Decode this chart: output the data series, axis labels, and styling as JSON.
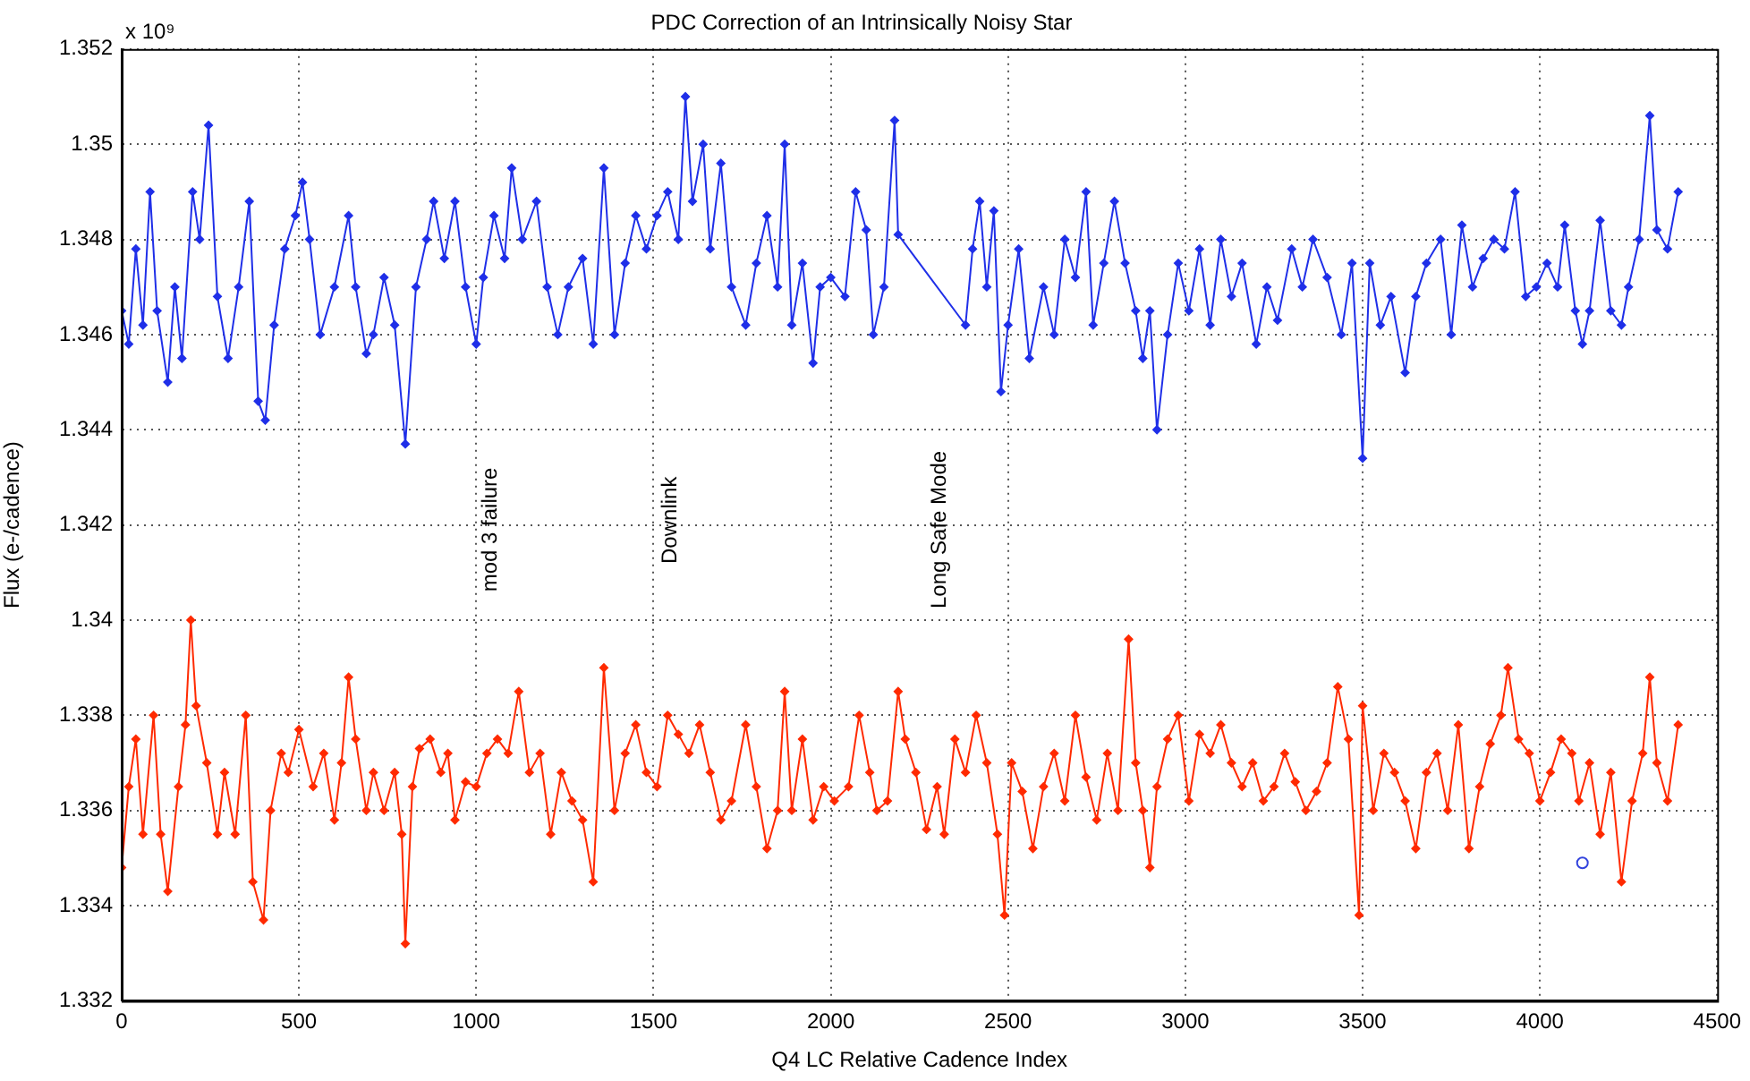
{
  "chart_data": {
    "type": "line",
    "title": "PDC Correction of an Intrinsically Noisy Star",
    "xlabel": "Q4 LC Relative Cadence Index",
    "ylabel": "Flux (e-/cadence)",
    "xlim": [
      0,
      4500
    ],
    "xticks": [
      0,
      500,
      1000,
      1500,
      2000,
      2500,
      3000,
      3500,
      4000,
      4500
    ],
    "ylim": [
      1.332,
      1.352
    ],
    "yticks": [
      1.332,
      1.334,
      1.336,
      1.338,
      1.34,
      1.342,
      1.344,
      1.346,
      1.348,
      1.35,
      1.352
    ],
    "grid": true,
    "legend": false,
    "marker": "diamond",
    "line_style": "solid",
    "annotations": [
      "x 10⁹",
      "mod 3 failure",
      "Downlink",
      "Long Safe Mode"
    ],
    "series": [
      {
        "color": "#1f2fe8",
        "x": [
          0,
          20,
          40,
          60,
          80,
          100,
          130,
          150,
          170,
          200,
          220,
          245,
          270,
          300,
          330,
          360,
          385,
          405,
          430,
          460,
          490,
          510,
          530,
          560,
          600,
          640,
          660,
          690,
          710,
          740,
          770,
          800,
          830,
          860,
          880,
          910,
          940,
          970,
          1000,
          1020,
          1050,
          1080,
          1100,
          1130,
          1170,
          1200,
          1230,
          1260,
          1300,
          1330,
          1360,
          1390,
          1420,
          1450,
          1480,
          1510,
          1540,
          1570,
          1590,
          1610,
          1640,
          1660,
          1690,
          1720,
          1760,
          1790,
          1820,
          1850,
          1870,
          1890,
          1920,
          1950,
          1970,
          2000,
          2040,
          2070,
          2100,
          2120,
          2150,
          2180,
          2190,
          2380,
          2400,
          2420,
          2440,
          2460,
          2480,
          2500,
          2530,
          2560,
          2600,
          2630,
          2660,
          2690,
          2720,
          2740,
          2770,
          2800,
          2830,
          2860,
          2880,
          2900,
          2920,
          2950,
          2980,
          3010,
          3040,
          3070,
          3100,
          3130,
          3160,
          3200,
          3230,
          3260,
          3300,
          3330,
          3360,
          3400,
          3440,
          3470,
          3500,
          3520,
          3550,
          3580,
          3620,
          3650,
          3680,
          3720,
          3750,
          3780,
          3810,
          3840,
          3870,
          3900,
          3930,
          3960,
          3990,
          4020,
          4050,
          4070,
          4100,
          4120,
          4140,
          4170,
          4200,
          4230,
          4250,
          4280,
          4310,
          4330,
          4360,
          4390
        ],
        "values": [
          1.3465,
          1.3458,
          1.3478,
          1.3462,
          1.349,
          1.3465,
          1.345,
          1.347,
          1.3455,
          1.349,
          1.348,
          1.3504,
          1.3468,
          1.3455,
          1.347,
          1.3488,
          1.3446,
          1.3442,
          1.3462,
          1.3478,
          1.3485,
          1.3492,
          1.348,
          1.346,
          1.347,
          1.3485,
          1.347,
          1.3456,
          1.346,
          1.3472,
          1.3462,
          1.3437,
          1.347,
          1.348,
          1.3488,
          1.3476,
          1.3488,
          1.347,
          1.3458,
          1.3472,
          1.3485,
          1.3476,
          1.3495,
          1.348,
          1.3488,
          1.347,
          1.346,
          1.347,
          1.3476,
          1.3458,
          1.3495,
          1.346,
          1.3475,
          1.3485,
          1.3478,
          1.3485,
          1.349,
          1.348,
          1.351,
          1.3488,
          1.35,
          1.3478,
          1.3496,
          1.347,
          1.3462,
          1.3475,
          1.3485,
          1.347,
          1.35,
          1.3462,
          1.3475,
          1.3454,
          1.347,
          1.3472,
          1.3468,
          1.349,
          1.3482,
          1.346,
          1.347,
          1.3505,
          1.3481,
          1.3462,
          1.3478,
          1.3488,
          1.347,
          1.3486,
          1.3448,
          1.3462,
          1.3478,
          1.3455,
          1.347,
          1.346,
          1.348,
          1.3472,
          1.349,
          1.3462,
          1.3475,
          1.3488,
          1.3475,
          1.3465,
          1.3455,
          1.3465,
          1.344,
          1.346,
          1.3475,
          1.3465,
          1.3478,
          1.3462,
          1.348,
          1.3468,
          1.3475,
          1.3458,
          1.347,
          1.3463,
          1.3478,
          1.347,
          1.348,
          1.3472,
          1.346,
          1.3475,
          1.3434,
          1.3475,
          1.3462,
          1.3468,
          1.3452,
          1.3468,
          1.3475,
          1.348,
          1.346,
          1.3483,
          1.347,
          1.3476,
          1.348,
          1.3478,
          1.349,
          1.3468,
          1.347,
          1.3475,
          1.347,
          1.3483,
          1.3465,
          1.3458,
          1.3465,
          1.3484,
          1.3465,
          1.3462,
          1.347,
          1.348,
          1.3506,
          1.3482,
          1.3478,
          1.349
        ]
      },
      {
        "color": "#ff2a00",
        "x": [
          0,
          20,
          40,
          60,
          90,
          110,
          130,
          160,
          180,
          195,
          210,
          240,
          270,
          290,
          320,
          350,
          370,
          400,
          420,
          450,
          470,
          500,
          540,
          570,
          600,
          620,
          640,
          660,
          690,
          710,
          740,
          770,
          790,
          800,
          820,
          840,
          870,
          900,
          920,
          940,
          970,
          1000,
          1030,
          1060,
          1090,
          1120,
          1150,
          1180,
          1210,
          1240,
          1270,
          1300,
          1330,
          1360,
          1390,
          1420,
          1450,
          1480,
          1510,
          1540,
          1570,
          1600,
          1630,
          1660,
          1690,
          1720,
          1760,
          1790,
          1820,
          1850,
          1870,
          1890,
          1920,
          1950,
          1980,
          2010,
          2050,
          2080,
          2110,
          2130,
          2160,
          2190,
          2210,
          2240,
          2270,
          2300,
          2320,
          2350,
          2380,
          2410,
          2440,
          2470,
          2490,
          2510,
          2540,
          2570,
          2600,
          2630,
          2660,
          2690,
          2720,
          2750,
          2780,
          2810,
          2840,
          2860,
          2880,
          2900,
          2920,
          2950,
          2980,
          3010,
          3040,
          3070,
          3100,
          3130,
          3160,
          3190,
          3220,
          3250,
          3280,
          3310,
          3340,
          3370,
          3400,
          3430,
          3460,
          3490,
          3500,
          3530,
          3560,
          3590,
          3620,
          3650,
          3680,
          3710,
          3740,
          3770,
          3800,
          3830,
          3860,
          3890,
          3910,
          3940,
          3970,
          4000,
          4030,
          4060,
          4090,
          4110,
          4140,
          4170,
          4200,
          4230,
          4260,
          4290,
          4310,
          4330,
          4360,
          4390
        ],
        "values": [
          1.3348,
          1.3365,
          1.3375,
          1.3355,
          1.338,
          1.3355,
          1.3343,
          1.3365,
          1.3378,
          1.34,
          1.3382,
          1.337,
          1.3355,
          1.3368,
          1.3355,
          1.338,
          1.3345,
          1.3337,
          1.336,
          1.3372,
          1.3368,
          1.3377,
          1.3365,
          1.3372,
          1.3358,
          1.337,
          1.3388,
          1.3375,
          1.336,
          1.3368,
          1.336,
          1.3368,
          1.3355,
          1.3332,
          1.3365,
          1.3373,
          1.3375,
          1.3368,
          1.3372,
          1.3358,
          1.3366,
          1.3365,
          1.3372,
          1.3375,
          1.3372,
          1.3385,
          1.3368,
          1.3372,
          1.3355,
          1.3368,
          1.3362,
          1.3358,
          1.3345,
          1.339,
          1.336,
          1.3372,
          1.3378,
          1.3368,
          1.3365,
          1.338,
          1.3376,
          1.3372,
          1.3378,
          1.3368,
          1.3358,
          1.3362,
          1.3378,
          1.3365,
          1.3352,
          1.336,
          1.3385,
          1.336,
          1.3375,
          1.3358,
          1.3365,
          1.3362,
          1.3365,
          1.338,
          1.3368,
          1.336,
          1.3362,
          1.3385,
          1.3375,
          1.3368,
          1.3356,
          1.3365,
          1.3355,
          1.3375,
          1.3368,
          1.338,
          1.337,
          1.3355,
          1.3338,
          1.337,
          1.3364,
          1.3352,
          1.3365,
          1.3372,
          1.3362,
          1.338,
          1.3367,
          1.3358,
          1.3372,
          1.336,
          1.3396,
          1.337,
          1.336,
          1.3348,
          1.3365,
          1.3375,
          1.338,
          1.3362,
          1.3376,
          1.3372,
          1.3378,
          1.337,
          1.3365,
          1.337,
          1.3362,
          1.3365,
          1.3372,
          1.3366,
          1.336,
          1.3364,
          1.337,
          1.3386,
          1.3375,
          1.3338,
          1.3382,
          1.336,
          1.3372,
          1.3368,
          1.3362,
          1.3352,
          1.3368,
          1.3372,
          1.336,
          1.3378,
          1.3352,
          1.3365,
          1.3374,
          1.338,
          1.339,
          1.3375,
          1.3372,
          1.3362,
          1.3368,
          1.3375,
          1.3372,
          1.3362,
          1.337,
          1.3355,
          1.3368,
          1.3345,
          1.3362,
          1.3372,
          1.3388,
          1.337,
          1.3362,
          1.3378
        ]
      },
      {
        "type": "scatter",
        "marker": "circle",
        "color": "#3344dd",
        "x": [
          4120
        ],
        "values": [
          1.3349
        ]
      }
    ]
  }
}
